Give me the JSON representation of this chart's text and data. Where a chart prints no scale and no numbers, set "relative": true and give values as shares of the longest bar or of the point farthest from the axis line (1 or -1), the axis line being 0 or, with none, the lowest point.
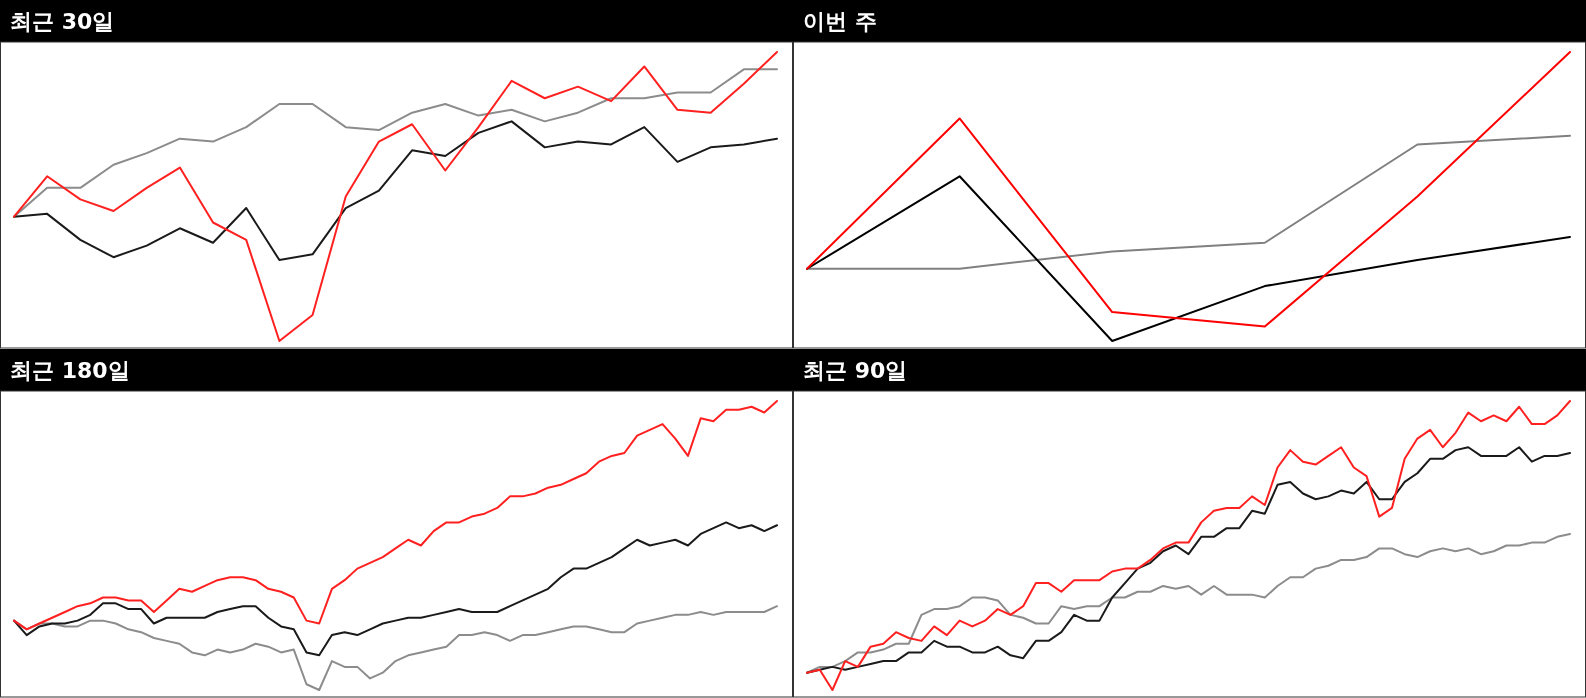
{
  "chart_data": [
    {
      "type": "line",
      "title": "최근 30일",
      "relative": true,
      "categories": [
        null,
        null,
        null,
        null,
        null,
        null,
        null,
        null,
        null,
        null,
        null,
        null,
        null,
        null,
        null,
        null,
        null,
        null,
        null,
        null,
        null,
        null,
        null,
        null
      ],
      "series": [
        {
          "color": "#8c8c8c",
          "values": [
            0.43,
            0.53,
            0.53,
            0.61,
            0.65,
            0.7,
            0.69,
            0.74,
            0.82,
            0.82,
            0.74,
            0.73,
            0.79,
            0.82,
            0.78,
            0.8,
            0.76,
            0.79,
            0.84,
            0.84,
            0.86,
            0.86,
            0.94,
            0.94
          ]
        },
        {
          "color": "#1a1a1a",
          "values": [
            0.43,
            0.44,
            0.35,
            0.29,
            0.33,
            0.39,
            0.34,
            0.46,
            0.28,
            0.3,
            0.46,
            0.52,
            0.66,
            0.64,
            0.72,
            0.76,
            0.67,
            0.69,
            0.68,
            0.74,
            0.62,
            0.67,
            0.68,
            0.7
          ]
        },
        {
          "color": "#ff2020",
          "values": [
            0.43,
            0.57,
            0.49,
            0.45,
            0.53,
            0.6,
            0.41,
            0.35,
            0,
            0.09,
            0.5,
            0.69,
            0.75,
            0.59,
            0.74,
            0.9,
            0.84,
            0.88,
            0.83,
            0.95,
            0.8,
            0.79,
            0.89,
            1
          ]
        }
      ]
    },
    {
      "type": "line",
      "title": "이번 주",
      "relative": true,
      "categories": [
        null,
        null,
        null,
        null,
        null,
        null
      ],
      "series": [
        {
          "color": "#808080",
          "values": [
            0.25,
            0.25,
            0.31,
            0.34,
            0.68,
            0.71
          ]
        },
        {
          "color": "#000000",
          "values": [
            0.25,
            0.57,
            0,
            0.19,
            0.28,
            0.36
          ]
        },
        {
          "color": "#ff0000",
          "values": [
            0.25,
            0.77,
            0.1,
            0.05,
            0.5,
            1
          ]
        }
      ]
    },
    {
      "type": "line",
      "title": "최근 180일",
      "relative": true,
      "categories": [
        null,
        null,
        null,
        null,
        null,
        null,
        null,
        null,
        null,
        null,
        null,
        null,
        null,
        null,
        null,
        null,
        null,
        null,
        null,
        null,
        null,
        null,
        null,
        null,
        null,
        null,
        null,
        null,
        null,
        null,
        null,
        null,
        null,
        null,
        null,
        null,
        null,
        null,
        null,
        null,
        null,
        null,
        null,
        null,
        null,
        null,
        null,
        null,
        null,
        null,
        null,
        null,
        null,
        null,
        null,
        null,
        null,
        null,
        null,
        null,
        null
      ],
      "series": [
        {
          "color": "#8c8c8c",
          "values": [
            0.24,
            0.21,
            0.23,
            0.23,
            0.22,
            0.22,
            0.24,
            0.24,
            0.23,
            0.21,
            0.2,
            0.18,
            0.17,
            0.16,
            0.13,
            0.12,
            0.14,
            0.13,
            0.14,
            0.16,
            0.15,
            0.13,
            0.14,
            0.02,
            0,
            0.1,
            0.08,
            0.08,
            0.04,
            0.06,
            0.1,
            0.12,
            0.13,
            0.14,
            0.15,
            0.19,
            0.19,
            0.2,
            0.19,
            0.17,
            0.19,
            0.19,
            0.2,
            0.21,
            0.22,
            0.22,
            0.21,
            0.2,
            0.2,
            0.23,
            0.24,
            0.25,
            0.26,
            0.26,
            0.27,
            0.26,
            0.27,
            0.27,
            0.27,
            0.27,
            0.29
          ]
        },
        {
          "color": "#1a1a1a",
          "values": [
            0.24,
            0.19,
            0.22,
            0.23,
            0.23,
            0.24,
            0.26,
            0.3,
            0.3,
            0.28,
            0.28,
            0.23,
            0.25,
            0.25,
            0.25,
            0.25,
            0.27,
            0.28,
            0.29,
            0.29,
            0.25,
            0.22,
            0.21,
            0.13,
            0.12,
            0.19,
            0.2,
            0.19,
            0.21,
            0.23,
            0.24,
            0.25,
            0.25,
            0.26,
            0.27,
            0.28,
            0.27,
            0.27,
            0.27,
            0.29,
            0.31,
            0.33,
            0.35,
            0.39,
            0.42,
            0.42,
            0.44,
            0.46,
            0.49,
            0.52,
            0.5,
            0.51,
            0.52,
            0.5,
            0.54,
            0.56,
            0.58,
            0.56,
            0.57,
            0.55,
            0.57
          ]
        },
        {
          "color": "#ff2020",
          "values": [
            0.24,
            0.21,
            0.23,
            0.25,
            0.27,
            0.29,
            0.3,
            0.32,
            0.32,
            0.31,
            0.31,
            0.27,
            0.31,
            0.35,
            0.34,
            0.36,
            0.38,
            0.39,
            0.39,
            0.38,
            0.35,
            0.34,
            0.32,
            0.24,
            0.23,
            0.35,
            0.38,
            0.42,
            0.44,
            0.46,
            0.49,
            0.52,
            0.5,
            0.55,
            0.58,
            0.58,
            0.6,
            0.61,
            0.63,
            0.67,
            0.67,
            0.68,
            0.7,
            0.71,
            0.73,
            0.75,
            0.79,
            0.81,
            0.82,
            0.88,
            0.9,
            0.92,
            0.87,
            0.81,
            0.94,
            0.93,
            0.97,
            0.97,
            0.98,
            0.96,
            1
          ]
        }
      ]
    },
    {
      "type": "line",
      "title": "최근 90일",
      "relative": true,
      "categories": [
        null,
        null,
        null,
        null,
        null,
        null,
        null,
        null,
        null,
        null,
        null,
        null,
        null,
        null,
        null,
        null,
        null,
        null,
        null,
        null,
        null,
        null,
        null,
        null,
        null,
        null,
        null,
        null,
        null,
        null,
        null,
        null,
        null,
        null,
        null,
        null,
        null,
        null,
        null,
        null,
        null,
        null,
        null,
        null,
        null,
        null,
        null,
        null,
        null,
        null,
        null,
        null,
        null,
        null,
        null,
        null,
        null,
        null,
        null,
        null,
        null
      ],
      "series": [
        {
          "color": "#8c8c8c",
          "values": [
            0.06,
            0.08,
            0.08,
            0.1,
            0.13,
            0.13,
            0.14,
            0.16,
            0.16,
            0.26,
            0.28,
            0.28,
            0.29,
            0.32,
            0.32,
            0.31,
            0.26,
            0.25,
            0.23,
            0.23,
            0.29,
            0.28,
            0.29,
            0.29,
            0.32,
            0.32,
            0.34,
            0.34,
            0.36,
            0.35,
            0.36,
            0.33,
            0.36,
            0.33,
            0.33,
            0.33,
            0.32,
            0.36,
            0.39,
            0.39,
            0.42,
            0.43,
            0.45,
            0.45,
            0.46,
            0.49,
            0.49,
            0.47,
            0.46,
            0.48,
            0.49,
            0.48,
            0.49,
            0.47,
            0.48,
            0.5,
            0.5,
            0.51,
            0.51,
            0.53,
            0.54
          ]
        },
        {
          "color": "#1a1a1a",
          "values": [
            0.06,
            0.07,
            0.08,
            0.07,
            0.08,
            0.09,
            0.1,
            0.1,
            0.13,
            0.13,
            0.17,
            0.15,
            0.15,
            0.13,
            0.13,
            0.15,
            0.12,
            0.11,
            0.17,
            0.17,
            0.2,
            0.26,
            0.24,
            0.24,
            0.32,
            0.37,
            0.42,
            0.44,
            0.48,
            0.5,
            0.47,
            0.53,
            0.53,
            0.56,
            0.56,
            0.62,
            0.61,
            0.71,
            0.72,
            0.68,
            0.66,
            0.67,
            0.69,
            0.68,
            0.72,
            0.66,
            0.66,
            0.72,
            0.75,
            0.8,
            0.8,
            0.83,
            0.84,
            0.81,
            0.81,
            0.81,
            0.84,
            0.79,
            0.81,
            0.81,
            0.82
          ]
        },
        {
          "color": "#ff2020",
          "values": [
            0.06,
            0.07,
            0,
            0.1,
            0.08,
            0.15,
            0.16,
            0.2,
            0.18,
            0.17,
            0.22,
            0.19,
            0.24,
            0.22,
            0.24,
            0.28,
            0.26,
            0.29,
            0.37,
            0.37,
            0.34,
            0.38,
            0.38,
            0.38,
            0.41,
            0.42,
            0.42,
            0.45,
            0.49,
            0.51,
            0.51,
            0.58,
            0.62,
            0.63,
            0.63,
            0.67,
            0.64,
            0.77,
            0.83,
            0.79,
            0.78,
            0.81,
            0.84,
            0.77,
            0.74,
            0.6,
            0.63,
            0.8,
            0.87,
            0.9,
            0.84,
            0.89,
            0.96,
            0.93,
            0.95,
            0.93,
            0.98,
            0.92,
            0.92,
            0.95,
            1
          ]
        }
      ]
    }
  ]
}
